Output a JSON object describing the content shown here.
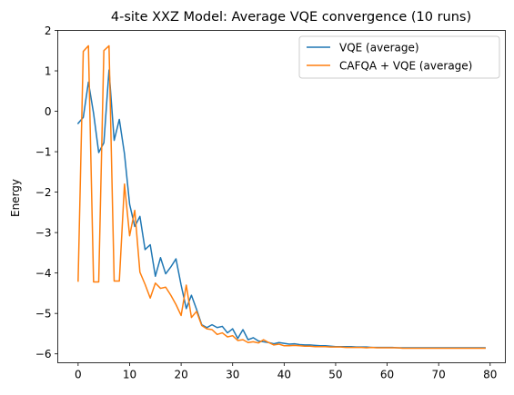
{
  "chart_data": {
    "type": "line",
    "title": "4-site XXZ Model: Average VQE convergence (10 runs)",
    "xlabel": "",
    "ylabel": "Energy",
    "xlim": [
      -3.95,
      82.95
    ],
    "ylim": [
      -6.22,
      2.0
    ],
    "xticks": [
      0,
      10,
      20,
      30,
      40,
      50,
      60,
      70,
      80
    ],
    "yticks": [
      -6,
      -5,
      -4,
      -3,
      -2,
      -1,
      0,
      1,
      2
    ],
    "legend_position": "top-right",
    "grid": false,
    "series": [
      {
        "name": "VQE (average)",
        "color": "#1f77b4",
        "x": [
          0,
          1,
          2,
          3,
          4,
          5,
          6,
          7,
          8,
          9,
          10,
          11,
          12,
          13,
          14,
          15,
          16,
          17,
          18,
          19,
          20,
          21,
          22,
          23,
          24,
          25,
          26,
          27,
          28,
          29,
          30,
          31,
          32,
          33,
          34,
          35,
          36,
          37,
          38,
          39,
          40,
          41,
          42,
          43,
          44,
          45,
          46,
          47,
          48,
          49,
          50,
          51,
          52,
          53,
          54,
          55,
          56,
          57,
          58,
          59,
          60,
          61,
          62,
          63,
          64,
          65,
          66,
          67,
          68,
          69,
          70,
          71,
          72,
          73,
          74,
          75,
          76,
          77,
          78,
          79
        ],
        "y": [
          -0.3,
          -0.15,
          0.72,
          -0.05,
          -1.02,
          -0.78,
          1.02,
          -0.72,
          -0.2,
          -1.05,
          -2.3,
          -2.85,
          -2.6,
          -3.42,
          -3.3,
          -4.08,
          -3.62,
          -4.02,
          -3.85,
          -3.65,
          -4.3,
          -4.88,
          -4.55,
          -4.9,
          -5.28,
          -5.35,
          -5.28,
          -5.35,
          -5.32,
          -5.48,
          -5.38,
          -5.62,
          -5.4,
          -5.65,
          -5.6,
          -5.68,
          -5.7,
          -5.72,
          -5.75,
          -5.72,
          -5.74,
          -5.76,
          -5.75,
          -5.77,
          -5.78,
          -5.78,
          -5.79,
          -5.8,
          -5.8,
          -5.81,
          -5.82,
          -5.82,
          -5.82,
          -5.82,
          -5.83,
          -5.83,
          -5.83,
          -5.84,
          -5.84,
          -5.84,
          -5.84,
          -5.84,
          -5.85,
          -5.85,
          -5.85,
          -5.85,
          -5.85,
          -5.85,
          -5.85,
          -5.85,
          -5.85,
          -5.85,
          -5.85,
          -5.85,
          -5.85,
          -5.85,
          -5.85,
          -5.85,
          -5.85,
          -5.85
        ]
      },
      {
        "name": "CAFQA + VQE (average)",
        "color": "#ff7f0e",
        "x": [
          0,
          1,
          2,
          3,
          4,
          5,
          6,
          7,
          8,
          9,
          10,
          11,
          12,
          13,
          14,
          15,
          16,
          17,
          18,
          19,
          20,
          21,
          22,
          23,
          24,
          25,
          26,
          27,
          28,
          29,
          30,
          31,
          32,
          33,
          34,
          35,
          36,
          37,
          38,
          39,
          40,
          41,
          42,
          43,
          44,
          45,
          46,
          47,
          48,
          49,
          50,
          51,
          52,
          53,
          54,
          55,
          56,
          57,
          58,
          59,
          60,
          61,
          62,
          63,
          64,
          65,
          66,
          67,
          68,
          69,
          70,
          71,
          72,
          73,
          74,
          75,
          76,
          77,
          78,
          79
        ],
        "y": [
          -4.2,
          1.48,
          1.62,
          -4.22,
          -4.22,
          1.5,
          1.62,
          -4.2,
          -4.2,
          -1.8,
          -3.08,
          -2.45,
          -3.98,
          -4.28,
          -4.62,
          -4.25,
          -4.38,
          -4.35,
          -4.55,
          -4.78,
          -5.05,
          -4.3,
          -5.1,
          -4.95,
          -5.3,
          -5.38,
          -5.4,
          -5.52,
          -5.48,
          -5.58,
          -5.55,
          -5.67,
          -5.65,
          -5.72,
          -5.7,
          -5.73,
          -5.65,
          -5.72,
          -5.78,
          -5.76,
          -5.8,
          -5.8,
          -5.79,
          -5.8,
          -5.81,
          -5.81,
          -5.82,
          -5.82,
          -5.82,
          -5.83,
          -5.83,
          -5.83,
          -5.84,
          -5.84,
          -5.84,
          -5.84,
          -5.85,
          -5.84,
          -5.85,
          -5.85,
          -5.85,
          -5.85,
          -5.85,
          -5.86,
          -5.86,
          -5.86,
          -5.86,
          -5.86,
          -5.86,
          -5.86,
          -5.86,
          -5.86,
          -5.86,
          -5.86,
          -5.86,
          -5.86,
          -5.86,
          -5.86,
          -5.86,
          -5.86
        ]
      }
    ]
  }
}
